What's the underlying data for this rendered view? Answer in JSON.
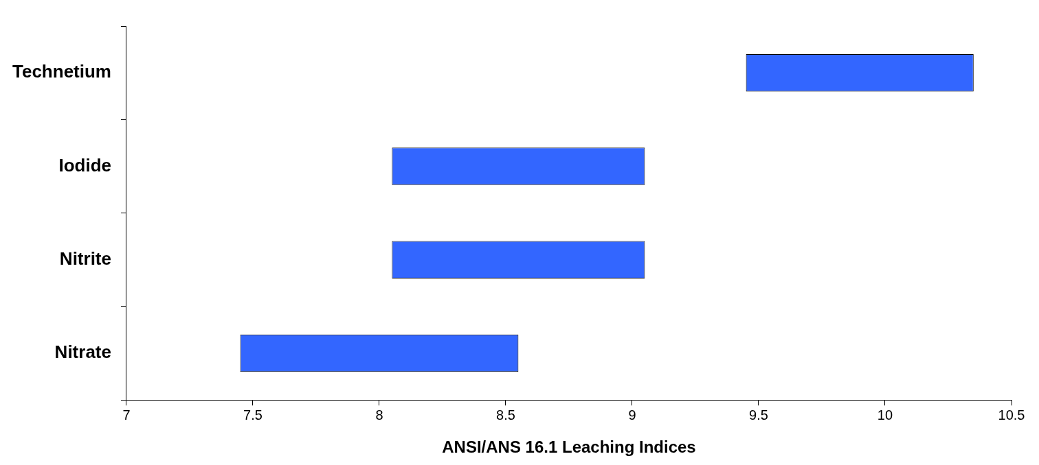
{
  "chart_data": {
    "type": "bar",
    "orientation": "horizontal",
    "xlabel": "ANSI/ANS 16.1 Leaching Indices",
    "categories": [
      "Technetium",
      "Iodide",
      "Nitrite",
      "Nitrate"
    ],
    "base": [
      9.45,
      8.05,
      8.05,
      7.45
    ],
    "values": [
      0.9,
      1.0,
      1.0,
      1.1
    ],
    "color": "#3366ff",
    "xlim": [
      7,
      10.5
    ],
    "xticks": [
      7,
      7.5,
      8,
      8.5,
      9,
      9.5,
      10,
      10.5
    ],
    "grid": false,
    "legend": false
  }
}
